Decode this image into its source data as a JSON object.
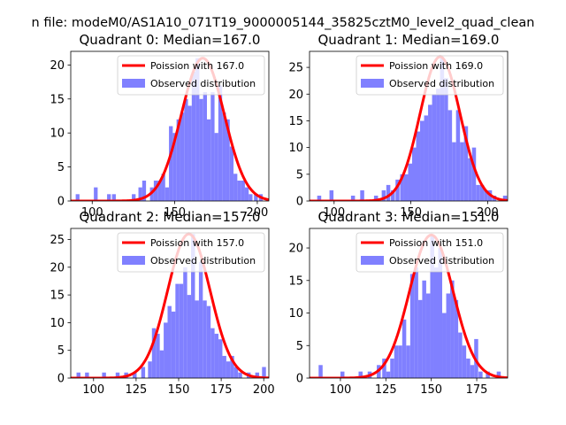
{
  "figure": {
    "suptitle": "n file: modeM0/AS1A10_071T19_9000005144_35825cztM0_level2_quad_clean"
  },
  "colors": {
    "hist": "#8080ff",
    "curve": "#ff0000",
    "axis": "#000000",
    "background": "#ffffff"
  },
  "chart_data": [
    {
      "type": "bar",
      "title": "Quadrant 0: Median=167.0",
      "median": 167.0,
      "xlim": [
        87,
        207
      ],
      "ylim": [
        0,
        22
      ],
      "xticks": [
        100,
        150,
        200
      ],
      "yticks": [
        0,
        5,
        10,
        15,
        20
      ],
      "bin_width": 2.3,
      "bins": [
        [
          90,
          1
        ],
        [
          101,
          2
        ],
        [
          109,
          1
        ],
        [
          112,
          1
        ],
        [
          124,
          1
        ],
        [
          128,
          2
        ],
        [
          130.3,
          3
        ],
        [
          135,
          2
        ],
        [
          137.3,
          3
        ],
        [
          139.6,
          3
        ],
        [
          141.9,
          4
        ],
        [
          144.2,
          2
        ],
        [
          146.5,
          11
        ],
        [
          148.8,
          10
        ],
        [
          151.1,
          12
        ],
        [
          153.4,
          13
        ],
        [
          155.7,
          15
        ],
        [
          158,
          14
        ],
        [
          160.3,
          19
        ],
        [
          162.6,
          21
        ],
        [
          164.9,
          15
        ],
        [
          167.2,
          16
        ],
        [
          169.5,
          12
        ],
        [
          171.8,
          16
        ],
        [
          174.1,
          10
        ],
        [
          176.4,
          17
        ],
        [
          178.7,
          13
        ],
        [
          181,
          12
        ],
        [
          183.3,
          8
        ],
        [
          185.6,
          4
        ],
        [
          187.9,
          3
        ],
        [
          190.2,
          3
        ],
        [
          192.5,
          2
        ],
        [
          194.8,
          1
        ],
        [
          198,
          1
        ],
        [
          201,
          1
        ]
      ],
      "curve": {
        "mu": 167,
        "sigma": 13,
        "peak": 21
      },
      "legend": {
        "curve_label": "Poission with 167.0",
        "hist_label": "Observed distribution",
        "position": "top-right"
      }
    },
    {
      "type": "bar",
      "title": "Quadrant 1: Median=169.0",
      "median": 169.0,
      "xlim": [
        84,
        213
      ],
      "ylim": [
        0,
        28
      ],
      "xticks": [
        100,
        150,
        200
      ],
      "yticks": [
        0,
        5,
        10,
        15,
        20,
        25
      ],
      "bin_width": 2.6,
      "bins": [
        [
          89,
          1
        ],
        [
          97,
          2
        ],
        [
          111,
          1
        ],
        [
          117,
          2
        ],
        [
          126,
          1
        ],
        [
          131,
          2
        ],
        [
          134,
          3
        ],
        [
          137,
          2
        ],
        [
          140,
          4
        ],
        [
          143,
          5
        ],
        [
          145.6,
          5
        ],
        [
          148.2,
          7
        ],
        [
          150.8,
          10
        ],
        [
          153.4,
          13
        ],
        [
          156,
          15
        ],
        [
          158.6,
          16
        ],
        [
          161.2,
          18
        ],
        [
          163.8,
          20
        ],
        [
          166.4,
          21
        ],
        [
          169,
          27
        ],
        [
          171.6,
          23
        ],
        [
          174.2,
          17
        ],
        [
          176.8,
          11
        ],
        [
          179.4,
          17
        ],
        [
          182,
          11
        ],
        [
          184.6,
          14
        ],
        [
          187.2,
          8
        ],
        [
          189.8,
          10
        ],
        [
          192.4,
          3
        ],
        [
          195,
          3
        ],
        [
          197.6,
          2
        ],
        [
          200.2,
          2
        ],
        [
          203,
          1
        ],
        [
          210,
          1
        ]
      ],
      "curve": {
        "mu": 169,
        "sigma": 13,
        "peak": 27
      },
      "legend": {
        "curve_label": "Poission with 169.0",
        "hist_label": "Observed distribution",
        "position": "top-right"
      }
    },
    {
      "type": "bar",
      "title": "Quadrant 2: Median=157.0",
      "median": 157.0,
      "xlim": [
        86.6,
        203
      ],
      "ylim": [
        0,
        27
      ],
      "xticks": [
        100,
        125,
        150,
        175,
        200
      ],
      "yticks": [
        0,
        5,
        10,
        15,
        20,
        25
      ],
      "bin_width": 2.3,
      "bins": [
        [
          90,
          1
        ],
        [
          95,
          1
        ],
        [
          105,
          1
        ],
        [
          113,
          1
        ],
        [
          118,
          1
        ],
        [
          123,
          1
        ],
        [
          128,
          2
        ],
        [
          132,
          3
        ],
        [
          134.3,
          9
        ],
        [
          136.6,
          8
        ],
        [
          138.9,
          5
        ],
        [
          141.2,
          10
        ],
        [
          143.5,
          13
        ],
        [
          145.8,
          12
        ],
        [
          148.1,
          17
        ],
        [
          150.4,
          17
        ],
        [
          152.7,
          20
        ],
        [
          155,
          15
        ],
        [
          157.3,
          26
        ],
        [
          159.6,
          14
        ],
        [
          161.9,
          21
        ],
        [
          164.2,
          14
        ],
        [
          166.5,
          13
        ],
        [
          168.8,
          9
        ],
        [
          171.1,
          8
        ],
        [
          173.4,
          7
        ],
        [
          175.7,
          4
        ],
        [
          178,
          3
        ],
        [
          180.3,
          4
        ],
        [
          182.6,
          2
        ],
        [
          185,
          1
        ],
        [
          190,
          1
        ],
        [
          195,
          1
        ],
        [
          199,
          2
        ]
      ],
      "curve": {
        "mu": 156,
        "sigma": 12.5,
        "peak": 26
      },
      "legend": {
        "curve_label": "Poission with 157.0",
        "hist_label": "Observed distribution",
        "position": "top-right"
      }
    },
    {
      "type": "bar",
      "title": "Quadrant 3: Median=151.0",
      "median": 151.0,
      "xlim": [
        83,
        192
      ],
      "ylim": [
        0,
        23
      ],
      "xticks": [
        100,
        125,
        150,
        175
      ],
      "yticks": [
        0,
        5,
        10,
        15,
        20
      ],
      "bin_width": 2.2,
      "bins": [
        [
          88,
          2
        ],
        [
          100,
          1
        ],
        [
          110,
          1
        ],
        [
          115,
          1
        ],
        [
          120,
          2
        ],
        [
          123,
          3
        ],
        [
          125.2,
          1
        ],
        [
          127.4,
          3
        ],
        [
          129.6,
          5
        ],
        [
          131.8,
          5
        ],
        [
          134,
          9
        ],
        [
          136.2,
          5
        ],
        [
          138.4,
          16
        ],
        [
          140.6,
          17
        ],
        [
          142.8,
          12
        ],
        [
          145,
          15
        ],
        [
          147.2,
          13
        ],
        [
          149.4,
          22
        ],
        [
          151.6,
          17
        ],
        [
          153.8,
          20
        ],
        [
          156,
          10
        ],
        [
          158.2,
          13
        ],
        [
          160.4,
          15
        ],
        [
          162.6,
          12
        ],
        [
          164.8,
          7
        ],
        [
          167,
          5
        ],
        [
          169.2,
          3
        ],
        [
          171.4,
          2
        ],
        [
          173.6,
          6
        ],
        [
          176,
          1
        ],
        [
          180,
          1
        ],
        [
          186,
          1
        ]
      ],
      "curve": {
        "mu": 150,
        "sigma": 12,
        "peak": 22
      },
      "legend": {
        "curve_label": "Poission with 151.0",
        "hist_label": "Observed distribution",
        "position": "top-right"
      }
    }
  ]
}
